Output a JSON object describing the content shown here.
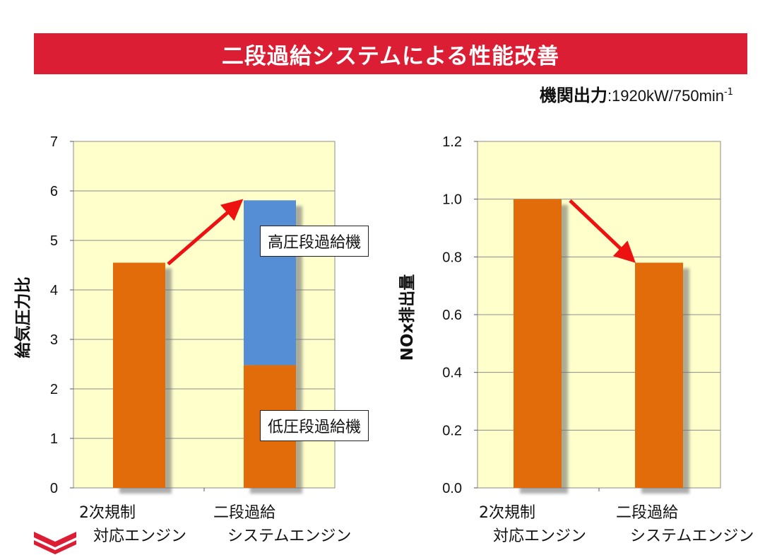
{
  "header": {
    "title": "二段過給システムによる性能改善",
    "engine_label": "機関出力",
    "engine_value": ":1920kW/750min",
    "engine_sup": "-1"
  },
  "colors": {
    "title_bar": "#dc1e35",
    "plot_bg": "#ffffcc",
    "orange": "#e36c0a",
    "blue": "#558ed5",
    "arrow": "#ee1111"
  },
  "chart_data": [
    {
      "type": "bar",
      "stacked": true,
      "ylabel": "給気圧力比",
      "ylim": [
        0,
        7
      ],
      "yticks": [
        "0",
        "1",
        "2",
        "3",
        "4",
        "5",
        "6",
        "7"
      ],
      "categories": [
        {
          "line1": "2次規制",
          "line2": "対応エンジン"
        },
        {
          "line1": "二段過給",
          "line2": "システムエンジン"
        }
      ],
      "series": [
        {
          "name": "低圧段過給機",
          "values": [
            4.55,
            2.48
          ]
        },
        {
          "name": "高圧段過給機",
          "values": [
            0,
            3.33
          ]
        }
      ],
      "annotations": [
        "高圧段過給機",
        "低圧段過給機"
      ],
      "grid": true,
      "trend_arrow": "up"
    },
    {
      "type": "bar",
      "ylabel": "NOx排出量",
      "ylim": [
        0,
        1.2
      ],
      "yticks": [
        "0.0",
        "0.2",
        "0.4",
        "0.6",
        "0.8",
        "1.0",
        "1.2"
      ],
      "categories": [
        {
          "line1": "2次規制",
          "line2": "対応エンジン"
        },
        {
          "line1": "二段過給",
          "line2": "システムエンジン"
        }
      ],
      "values": [
        1.0,
        0.78
      ],
      "grid": true,
      "trend_arrow": "down"
    }
  ]
}
